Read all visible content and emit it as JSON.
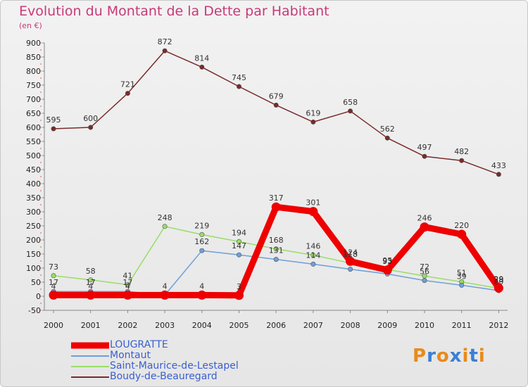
{
  "chart_data": {
    "type": "line",
    "title": "Evolution du Montant de la Dette par Habitant",
    "subtitle": "(en €)",
    "x": [
      "2000",
      "2001",
      "2002",
      "2003",
      "2004",
      "2005",
      "2006",
      "2007",
      "2008",
      "2009",
      "2010",
      "2011",
      "2012"
    ],
    "ylim": [
      -50,
      900
    ],
    "yticks": [
      -50,
      0,
      50,
      100,
      150,
      200,
      250,
      300,
      350,
      400,
      450,
      500,
      550,
      600,
      650,
      700,
      750,
      800,
      850,
      900
    ],
    "grid": false,
    "legend_position": "bottom-left",
    "series": [
      {
        "name": "LOUGRATTE",
        "color": "#ee0000",
        "values": [
          4,
          4,
          4,
          4,
          4,
          3,
          317,
          301,
          124,
          93,
          246,
          220,
          29
        ],
        "labels": [
          "4",
          "4",
          "4",
          "4",
          "4",
          "3",
          "317",
          "301",
          "124",
          "93",
          "246",
          "220",
          "29"
        ]
      },
      {
        "name": "Montaut",
        "color": "#6f9fd8",
        "values": [
          17,
          17,
          17,
          4,
          162,
          147,
          131,
          114,
          96,
          79,
          56,
          39,
          20
        ],
        "labels": [
          "17",
          "17",
          "17",
          "",
          "162",
          "147",
          "131",
          "114",
          "",
          "",
          "56",
          "39",
          "20"
        ]
      },
      {
        "name": "Saint-Maurice-de-Lestapel",
        "color": "#99dd66",
        "values": [
          73,
          58,
          41,
          248,
          219,
          194,
          168,
          146,
          118,
          95,
          72,
          51,
          28
        ],
        "labels": [
          "73",
          "58",
          "41",
          "248",
          "219",
          "194",
          "168",
          "146",
          "118",
          "95",
          "72",
          "51",
          "28"
        ]
      },
      {
        "name": "Boudy-de-Beauregard",
        "color": "#7a2a2a",
        "values": [
          595,
          600,
          721,
          872,
          814,
          745,
          679,
          619,
          658,
          562,
          497,
          482,
          433
        ],
        "labels": [
          "595",
          "600",
          "721",
          "872",
          "814",
          "745",
          "679",
          "619",
          "658",
          "562",
          "497",
          "482",
          "433"
        ]
      }
    ]
  },
  "logo": {
    "text": "Proxiti",
    "colors": [
      "#e98a1a",
      "#3a7fd5",
      "#e98a1a",
      "#3a7fd5",
      "#e98a1a",
      "#3a7fd5",
      "#e98a1a"
    ]
  }
}
